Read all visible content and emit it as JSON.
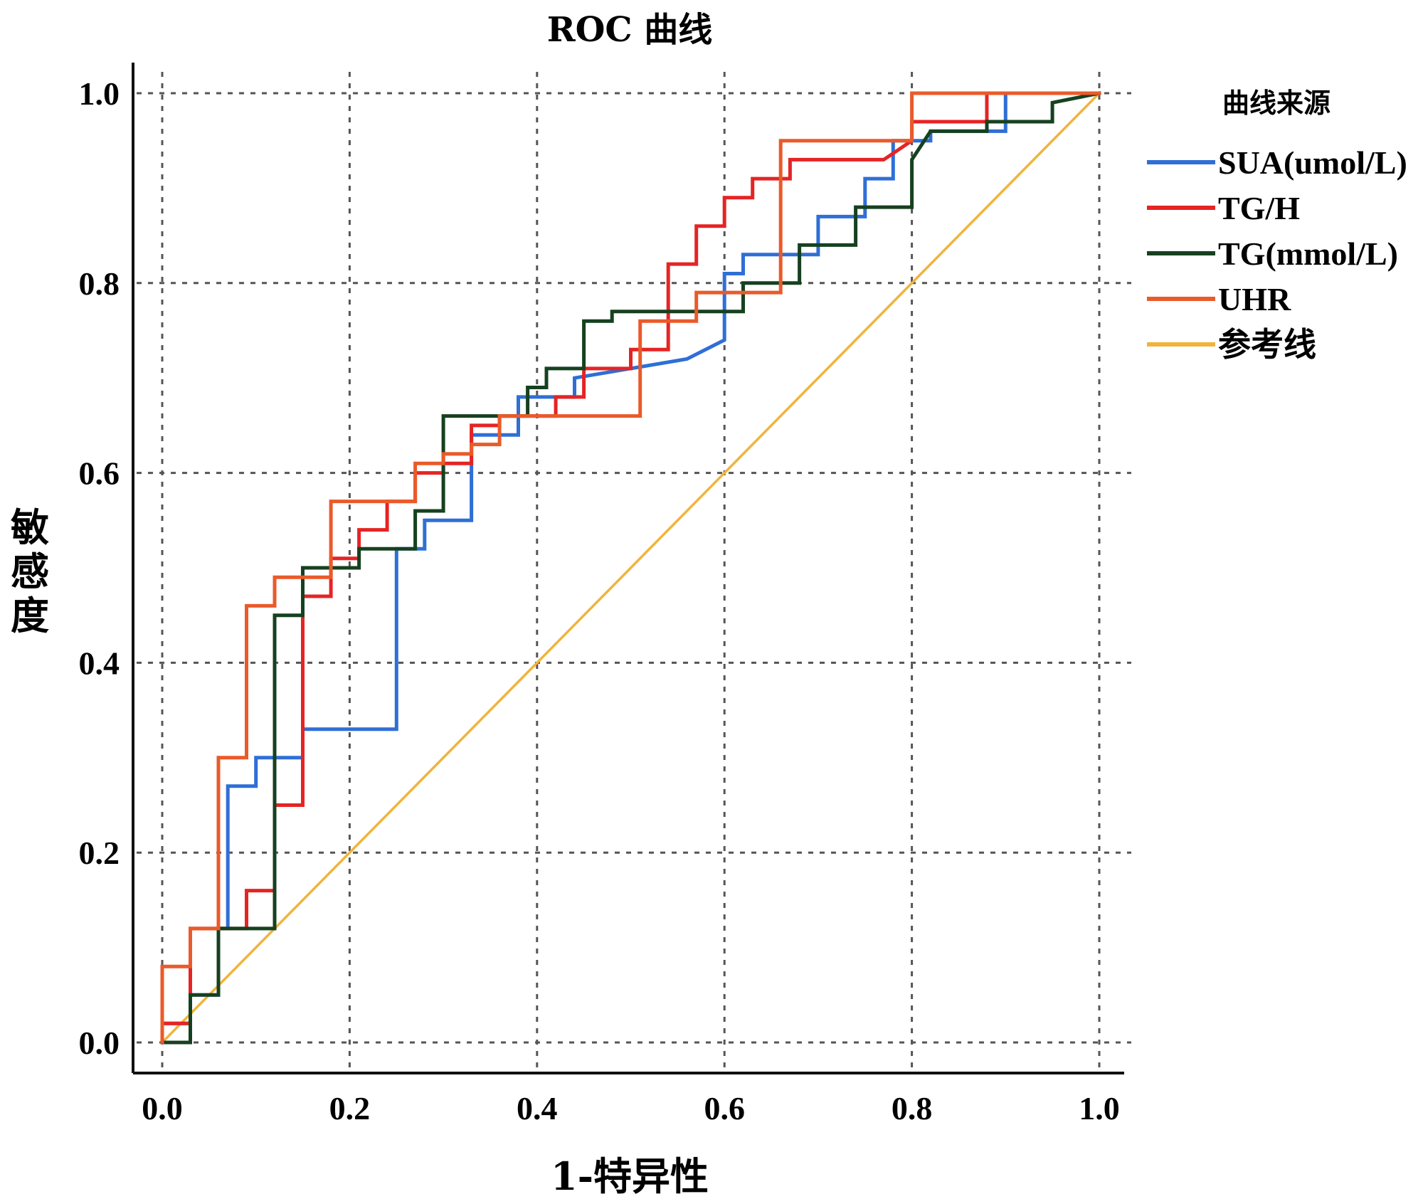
{
  "chart_data": {
    "type": "line",
    "title": "ROC 曲线",
    "xlabel": "1-特异性",
    "ylabel": "敏感度",
    "xlim": [
      0,
      1
    ],
    "ylim": [
      0,
      1
    ],
    "xticks": [
      "0.0",
      "0.2",
      "0.4",
      "0.6",
      "0.8",
      "1.0"
    ],
    "yticks": [
      "0.0",
      "0.2",
      "0.4",
      "0.6",
      "0.8",
      "1.0"
    ],
    "grid": true,
    "legend": {
      "title": "曲线来源",
      "position": "top-right"
    },
    "series": [
      {
        "name": "SUA(umol/L)",
        "color": "#2f6fd6",
        "x": [
          0.0,
          0.0,
          0.03,
          0.03,
          0.06,
          0.06,
          0.07,
          0.07,
          0.1,
          0.1,
          0.15,
          0.15,
          0.25,
          0.25,
          0.28,
          0.28,
          0.33,
          0.33,
          0.38,
          0.38,
          0.44,
          0.44,
          0.56,
          0.6,
          0.6,
          0.62,
          0.62,
          0.7,
          0.7,
          0.75,
          0.75,
          0.78,
          0.78,
          0.82,
          0.82,
          0.9,
          0.9,
          1.0
        ],
        "y": [
          0.0,
          0.02,
          0.02,
          0.05,
          0.05,
          0.12,
          0.12,
          0.27,
          0.27,
          0.3,
          0.3,
          0.33,
          0.33,
          0.52,
          0.52,
          0.55,
          0.55,
          0.64,
          0.64,
          0.68,
          0.68,
          0.7,
          0.72,
          0.74,
          0.81,
          0.81,
          0.83,
          0.83,
          0.87,
          0.87,
          0.91,
          0.91,
          0.95,
          0.95,
          0.96,
          0.96,
          1.0,
          1.0
        ]
      },
      {
        "name": "TG/H",
        "color": "#e52424",
        "x": [
          0.0,
          0.0,
          0.03,
          0.03,
          0.06,
          0.06,
          0.09,
          0.09,
          0.12,
          0.12,
          0.15,
          0.15,
          0.18,
          0.18,
          0.21,
          0.21,
          0.24,
          0.24,
          0.27,
          0.27,
          0.3,
          0.3,
          0.33,
          0.33,
          0.36,
          0.36,
          0.42,
          0.42,
          0.45,
          0.45,
          0.5,
          0.5,
          0.54,
          0.54,
          0.57,
          0.57,
          0.6,
          0.6,
          0.63,
          0.63,
          0.67,
          0.67,
          0.72,
          0.72,
          0.77,
          0.8,
          0.8,
          0.88,
          0.88,
          1.0
        ],
        "y": [
          0.0,
          0.02,
          0.02,
          0.12,
          0.12,
          0.12,
          0.12,
          0.16,
          0.16,
          0.25,
          0.25,
          0.47,
          0.47,
          0.51,
          0.51,
          0.54,
          0.54,
          0.57,
          0.57,
          0.6,
          0.6,
          0.61,
          0.61,
          0.65,
          0.65,
          0.66,
          0.66,
          0.68,
          0.68,
          0.71,
          0.71,
          0.73,
          0.73,
          0.82,
          0.82,
          0.86,
          0.86,
          0.89,
          0.89,
          0.91,
          0.91,
          0.93,
          0.93,
          0.93,
          0.93,
          0.95,
          0.97,
          0.97,
          1.0,
          1.0
        ]
      },
      {
        "name": "TG(mmol/L)",
        "color": "#16411f",
        "x": [
          0.0,
          0.0,
          0.03,
          0.03,
          0.06,
          0.06,
          0.09,
          0.09,
          0.12,
          0.12,
          0.15,
          0.15,
          0.21,
          0.21,
          0.27,
          0.27,
          0.3,
          0.3,
          0.39,
          0.39,
          0.41,
          0.41,
          0.45,
          0.45,
          0.48,
          0.48,
          0.54,
          0.54,
          0.62,
          0.62,
          0.68,
          0.68,
          0.71,
          0.71,
          0.74,
          0.74,
          0.8,
          0.8,
          0.82,
          0.88,
          0.88,
          0.95,
          0.95,
          1.0
        ],
        "y": [
          0.0,
          0.0,
          0.0,
          0.05,
          0.05,
          0.12,
          0.12,
          0.12,
          0.12,
          0.45,
          0.45,
          0.5,
          0.5,
          0.52,
          0.52,
          0.56,
          0.56,
          0.66,
          0.66,
          0.69,
          0.69,
          0.71,
          0.71,
          0.76,
          0.76,
          0.77,
          0.77,
          0.77,
          0.77,
          0.8,
          0.8,
          0.84,
          0.84,
          0.84,
          0.84,
          0.88,
          0.88,
          0.93,
          0.96,
          0.96,
          0.97,
          0.97,
          0.99,
          1.0
        ]
      },
      {
        "name": "UHR",
        "color": "#ea5a2a",
        "x": [
          0.0,
          0.0,
          0.03,
          0.03,
          0.06,
          0.06,
          0.09,
          0.09,
          0.12,
          0.12,
          0.18,
          0.18,
          0.24,
          0.24,
          0.27,
          0.27,
          0.3,
          0.3,
          0.33,
          0.33,
          0.36,
          0.36,
          0.45,
          0.45,
          0.51,
          0.51,
          0.57,
          0.57,
          0.66,
          0.66,
          0.8,
          0.8,
          1.0
        ],
        "y": [
          0.0,
          0.08,
          0.08,
          0.12,
          0.12,
          0.3,
          0.3,
          0.46,
          0.46,
          0.49,
          0.49,
          0.57,
          0.57,
          0.57,
          0.57,
          0.61,
          0.61,
          0.62,
          0.62,
          0.63,
          0.63,
          0.66,
          0.66,
          0.66,
          0.66,
          0.76,
          0.76,
          0.79,
          0.79,
          0.95,
          0.95,
          1.0,
          1.0
        ]
      },
      {
        "name": "参考线",
        "color": "#f0b43c",
        "x": [
          0.0,
          1.0
        ],
        "y": [
          0.0,
          1.0
        ]
      }
    ]
  }
}
